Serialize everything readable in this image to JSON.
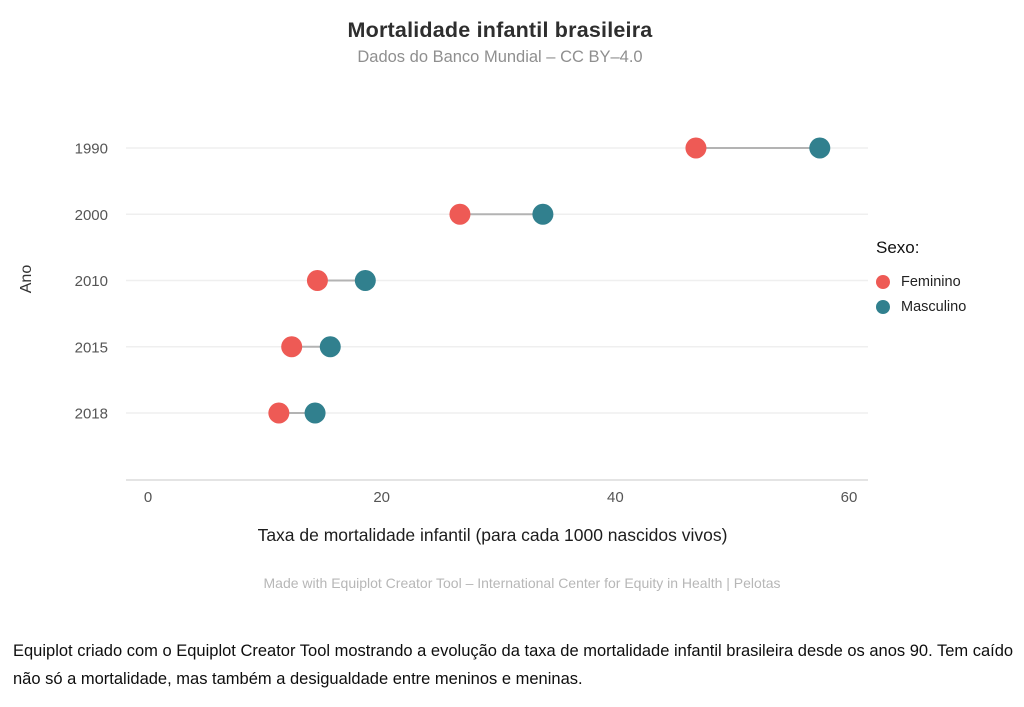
{
  "header": {
    "title": "Mortalidade infantil brasileira",
    "subtitle": "Dados do Banco Mundial – CC BY–4.0"
  },
  "chart_data": {
    "type": "scatter",
    "variant": "dumbbell-equiplot",
    "categories": [
      "1990",
      "2000",
      "2010",
      "2015",
      "2018"
    ],
    "series": [
      {
        "name": "Feminino",
        "color": "#ee5a55",
        "values": [
          46.9,
          26.7,
          14.5,
          12.3,
          11.2
        ]
      },
      {
        "name": "Masculino",
        "color": "#31808e",
        "values": [
          57.5,
          33.8,
          18.6,
          15.6,
          14.3
        ]
      }
    ],
    "title": "Mortalidade infantil brasileira",
    "subtitle": "Dados do Banco Mundial – CC BY–4.0",
    "xlabel": "Taxa de mortalidade infantil (para cada 1000 nascidos vivos)",
    "ylabel": "Ano",
    "xlim": [
      0,
      60
    ],
    "xticks": [
      0,
      20,
      40,
      60
    ],
    "grid": "horizontal",
    "legend_title": "Sexo:",
    "legend_position": "right",
    "style": {
      "gridline_color": "#efefef",
      "axis_line_color": "#e4e4e4",
      "connector_color": "#b3b3b3",
      "tick_label_color": "#555555"
    }
  },
  "caption": "Made with Equiplot Creator Tool – International Center for Equity in Health | Pelotas",
  "footer": "Equiplot criado com o Equiplot Creator Tool mostrando a evolução da taxa de mortalidade infantil brasileira desde os anos 90. Tem caído não só a mortalidade, mas também a desigualdade entre meninos e meninas."
}
